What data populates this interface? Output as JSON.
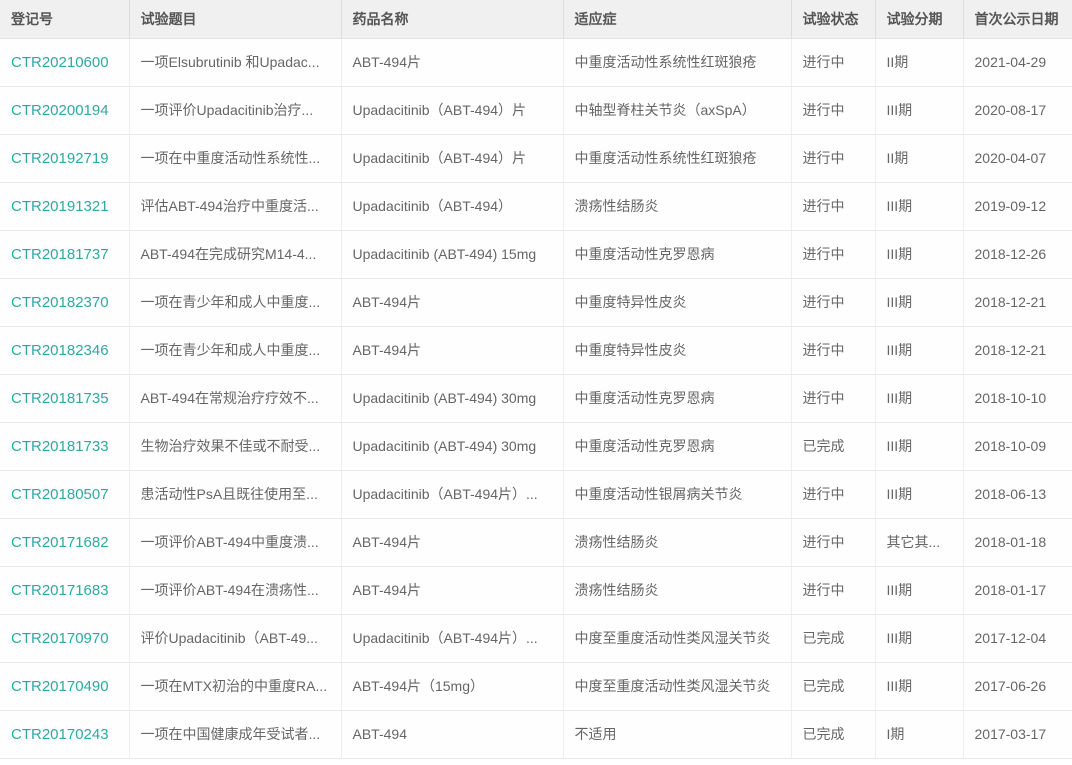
{
  "accent_color": "#2fa9a0",
  "table": {
    "columns": [
      {
        "key": "reg_no",
        "label": "登记号"
      },
      {
        "key": "title",
        "label": "试验题目"
      },
      {
        "key": "drug",
        "label": "药品名称"
      },
      {
        "key": "indication",
        "label": "适应症"
      },
      {
        "key": "status",
        "label": "试验状态"
      },
      {
        "key": "phase",
        "label": "试验分期"
      },
      {
        "key": "first_publish_date",
        "label": "首次公示日期"
      }
    ],
    "rows": [
      {
        "reg_no": "CTR20210600",
        "title": "一项Elsubrutinib 和Upadac...",
        "drug": "ABT-494片",
        "indication": "中重度活动性系统性红斑狼疮",
        "status": "进行中",
        "phase": "II期",
        "first_publish_date": "2021-04-29"
      },
      {
        "reg_no": "CTR20200194",
        "title": "一项评价Upadacitinib治疗...",
        "drug": "Upadacitinib（ABT-494）片",
        "indication": "中轴型脊柱关节炎（axSpA）",
        "status": "进行中",
        "phase": "III期",
        "first_publish_date": "2020-08-17"
      },
      {
        "reg_no": "CTR20192719",
        "title": "一项在中重度活动性系统性...",
        "drug": "Upadacitinib（ABT-494）片",
        "indication": "中重度活动性系统性红斑狼疮",
        "status": "进行中",
        "phase": "II期",
        "first_publish_date": "2020-04-07"
      },
      {
        "reg_no": "CTR20191321",
        "title": "评估ABT-494治疗中重度活...",
        "drug": "Upadacitinib（ABT-494）",
        "indication": "溃疡性结肠炎",
        "status": "进行中",
        "phase": "III期",
        "first_publish_date": "2019-09-12"
      },
      {
        "reg_no": "CTR20181737",
        "title": "ABT-494在完成研究M14-4...",
        "drug": "Upadacitinib (ABT-494) 15mg",
        "indication": "中重度活动性克罗恩病",
        "status": "进行中",
        "phase": "III期",
        "first_publish_date": "2018-12-26"
      },
      {
        "reg_no": "CTR20182370",
        "title": "一项在青少年和成人中重度...",
        "drug": "ABT-494片",
        "indication": "中重度特异性皮炎",
        "status": "进行中",
        "phase": "III期",
        "first_publish_date": "2018-12-21"
      },
      {
        "reg_no": "CTR20182346",
        "title": "一项在青少年和成人中重度...",
        "drug": "ABT-494片",
        "indication": "中重度特异性皮炎",
        "status": "进行中",
        "phase": "III期",
        "first_publish_date": "2018-12-21"
      },
      {
        "reg_no": "CTR20181735",
        "title": "ABT-494在常规治疗疗效不...",
        "drug": "Upadacitinib (ABT-494) 30mg",
        "indication": "中重度活动性克罗恩病",
        "status": "进行中",
        "phase": "III期",
        "first_publish_date": "2018-10-10"
      },
      {
        "reg_no": "CTR20181733",
        "title": "生物治疗效果不佳或不耐受...",
        "drug": "Upadacitinib (ABT-494) 30mg",
        "indication": "中重度活动性克罗恩病",
        "status": "已完成",
        "phase": "III期",
        "first_publish_date": "2018-10-09"
      },
      {
        "reg_no": "CTR20180507",
        "title": "患活动性PsA且既往使用至...",
        "drug": "Upadacitinib（ABT-494片）...",
        "indication": "中重度活动性银屑病关节炎",
        "status": "进行中",
        "phase": "III期",
        "first_publish_date": "2018-06-13"
      },
      {
        "reg_no": "CTR20171682",
        "title": "一项评价ABT-494中重度溃...",
        "drug": "ABT-494片",
        "indication": "溃疡性结肠炎",
        "status": "进行中",
        "phase": "其它其...",
        "first_publish_date": "2018-01-18"
      },
      {
        "reg_no": "CTR20171683",
        "title": "一项评价ABT-494在溃疡性...",
        "drug": "ABT-494片",
        "indication": "溃疡性结肠炎",
        "status": "进行中",
        "phase": "III期",
        "first_publish_date": "2018-01-17"
      },
      {
        "reg_no": "CTR20170970",
        "title": "评价Upadacitinib（ABT-49...",
        "drug": "Upadacitinib（ABT-494片）...",
        "indication": "中度至重度活动性类风湿关节炎",
        "status": "已完成",
        "phase": "III期",
        "first_publish_date": "2017-12-04"
      },
      {
        "reg_no": "CTR20170490",
        "title": "一项在MTX初治的中重度RA...",
        "drug": "ABT-494片（15mg）",
        "indication": "中度至重度活动性类风湿关节炎",
        "status": "已完成",
        "phase": "III期",
        "first_publish_date": "2017-06-26"
      },
      {
        "reg_no": "CTR20170243",
        "title": "一项在中国健康成年受试者...",
        "drug": "ABT-494",
        "indication": "不适用",
        "status": "已完成",
        "phase": "I期",
        "first_publish_date": "2017-03-17"
      }
    ]
  }
}
